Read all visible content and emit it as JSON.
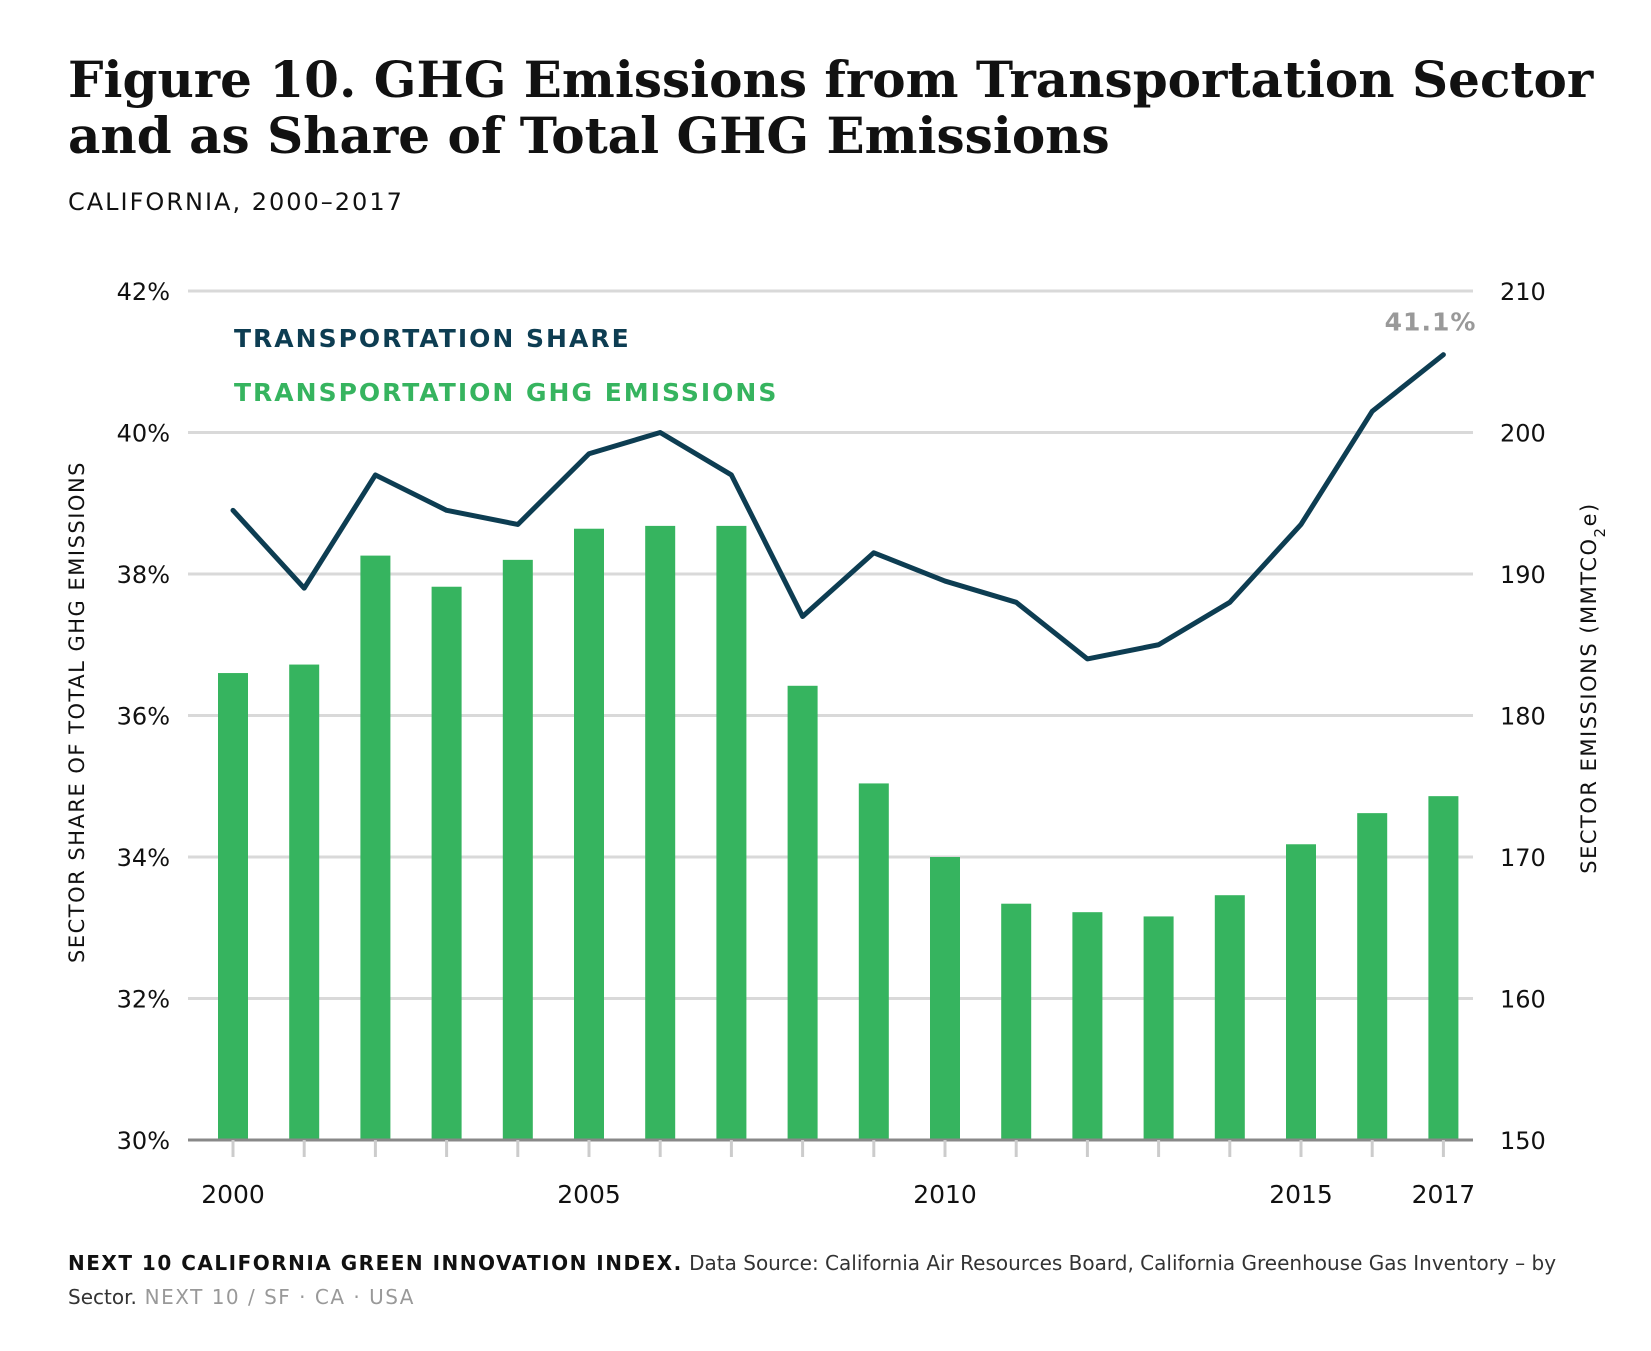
{
  "title_line1": "Figure 10. GHG Emissions from Transportation Sector",
  "title_line2": "and as Share of Total GHG Emissions",
  "subtitle": "CALIFORNIA, 2000–2017",
  "colors": {
    "share_line": "#0d3d52",
    "emissions_bar": "#36b45f",
    "gridline": "#d9d9d9",
    "axis": "#888888",
    "end_label": "#999999"
  },
  "chart_data": {
    "type": "bar",
    "legend_position": "top-left",
    "grid": true,
    "categories": [
      2000,
      2001,
      2002,
      2003,
      2004,
      2005,
      2006,
      2007,
      2008,
      2009,
      2010,
      2011,
      2012,
      2013,
      2014,
      2015,
      2016,
      2017
    ],
    "x_tick_labels": [
      "2000",
      "2005",
      "2010",
      "2015",
      "2017"
    ],
    "y_left": {
      "label": "SECTOR SHARE OF TOTAL GHG EMISSIONS",
      "ticks": [
        "30%",
        "32%",
        "34%",
        "36%",
        "38%",
        "40%",
        "42%"
      ],
      "range": [
        30,
        42
      ]
    },
    "y_right": {
      "label": "SECTOR EMISSIONS (MMTCO",
      "label_sub": "2",
      "label_end": "e)",
      "ticks": [
        "150",
        "160",
        "170",
        "180",
        "190",
        "200",
        "210"
      ],
      "range": [
        150,
        210
      ]
    },
    "series": [
      {
        "name": "TRANSPORTATION GHG EMISSIONS",
        "type": "bar",
        "axis": "right",
        "values": [
          183.0,
          183.6,
          191.3,
          189.1,
          191.0,
          193.2,
          193.4,
          193.4,
          182.1,
          175.2,
          170.0,
          166.7,
          166.1,
          165.8,
          167.3,
          170.9,
          173.1,
          174.3
        ]
      },
      {
        "name": "TRANSPORTATION SHARE",
        "type": "line",
        "axis": "left",
        "values": [
          38.9,
          37.8,
          39.4,
          38.9,
          38.7,
          39.7,
          40.0,
          39.4,
          37.4,
          38.3,
          37.9,
          37.6,
          36.8,
          37.0,
          37.6,
          38.7,
          40.3,
          41.1
        ]
      }
    ],
    "annotations": [
      {
        "text": "41.1%",
        "x": 2017,
        "series": "TRANSPORTATION SHARE"
      }
    ]
  },
  "footer": {
    "bold": "NEXT 10 CALIFORNIA GREEN INNOVATION INDEX.",
    "source": " Data Source: California Air Resources Board, California Greenhouse Gas Inventory – by Sector.",
    "org": "  NEXT 10  /  SF · CA · USA"
  }
}
